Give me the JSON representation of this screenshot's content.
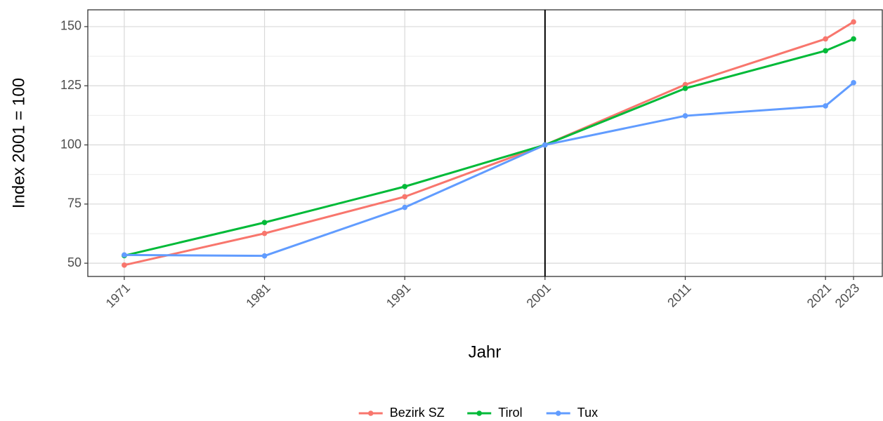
{
  "chart_data": {
    "type": "line",
    "x_label": "Jahr",
    "y_label": "Index 2001 = 100",
    "x": [
      1971,
      1981,
      1991,
      2001,
      2011,
      2021,
      2023
    ],
    "series": [
      {
        "name": "Bezirk SZ",
        "color": "#f8766d",
        "values": [
          49.2,
          62.6,
          78.1,
          100,
          125.5,
          144.8,
          152
        ]
      },
      {
        "name": "Tirol",
        "color": "#00ba38",
        "values": [
          53.2,
          67.2,
          82.4,
          100,
          123.9,
          139.8,
          144.8
        ]
      },
      {
        "name": "Tux",
        "color": "#619cff",
        "values": [
          53.5,
          53.1,
          73.6,
          100,
          112.3,
          116.5,
          126.3
        ]
      }
    ],
    "xlim": [
      1968.4,
      2025.05
    ],
    "xticks": [
      1971,
      1981,
      1991,
      2001,
      2011,
      2021,
      2023
    ],
    "ylim": [
      44.4,
      157.1
    ],
    "yticks": [
      50,
      75,
      100,
      125,
      150
    ],
    "y_minor_ticks": [
      62.5,
      87.5,
      112.5,
      137.5
    ],
    "vline": 2001,
    "grid": true,
    "legend": "bottom"
  }
}
